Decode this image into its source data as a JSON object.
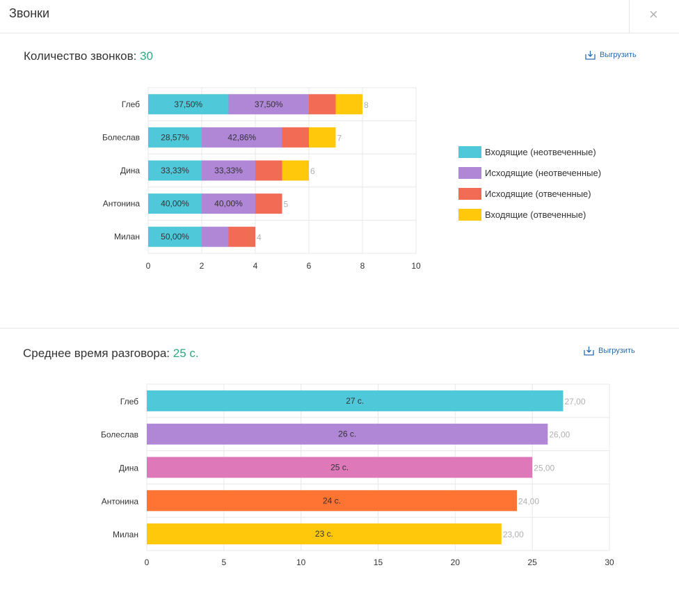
{
  "window": {
    "title": "Звонки"
  },
  "close_icon": "×",
  "section1": {
    "title": "Количество звонков: ",
    "value": "30",
    "export_label": "Выгрузить"
  },
  "section2": {
    "title": "Среднее время разговора: ",
    "value": "25 с.",
    "export_label": "Выгрузить"
  },
  "chart_data": [
    {
      "type": "bar",
      "orientation": "horizontal",
      "stacked": true,
      "categories": [
        "Глеб",
        "Болеслав",
        "Дина",
        "Антонина",
        "Милан"
      ],
      "series": [
        {
          "name": "Входящие (неотвеченные)",
          "color": "#4fc8d9",
          "values": [
            3,
            2,
            2,
            2,
            2
          ],
          "labels": [
            "37,50%",
            "28,57%",
            "33,33%",
            "40,00%",
            "50,00%"
          ]
        },
        {
          "name": "Исходящие (неотвеченные)",
          "color": "#b086d6",
          "values": [
            3,
            3,
            2,
            2,
            1
          ],
          "labels": [
            "37,50%",
            "42,86%",
            "33,33%",
            "40,00%",
            ""
          ]
        },
        {
          "name": "Исходящие (отвеченные)",
          "color": "#f26b55",
          "values": [
            1,
            1,
            1,
            1,
            1
          ],
          "labels": [
            "",
            "",
            "",
            "",
            ""
          ]
        },
        {
          "name": "Входящие (отвеченные)",
          "color": "#ffc80a",
          "values": [
            1,
            1,
            1,
            0,
            0
          ],
          "labels": [
            "",
            "",
            "",
            "",
            ""
          ]
        }
      ],
      "totals": [
        "8",
        "7",
        "6",
        "5",
        "4"
      ],
      "xlim": [
        0,
        10
      ],
      "xticks": [
        "0",
        "2",
        "4",
        "6",
        "8",
        "10"
      ],
      "grid": true,
      "legend": "right"
    },
    {
      "type": "bar",
      "orientation": "horizontal",
      "categories": [
        "Глеб",
        "Болеслав",
        "Дина",
        "Антонина",
        "Милан"
      ],
      "values": [
        27,
        26,
        25,
        24,
        23
      ],
      "bar_labels": [
        "27 с.",
        "26 с.",
        "25 с.",
        "24 с.",
        "23 с."
      ],
      "end_labels": [
        "27,00",
        "26,00",
        "25,00",
        "24,00",
        "23,00"
      ],
      "colors": [
        "#4fc8d9",
        "#b086d6",
        "#df78b8",
        "#ff7333",
        "#ffc80a"
      ],
      "xlim": [
        0,
        30
      ],
      "xticks": [
        "0",
        "5",
        "10",
        "15",
        "20",
        "25",
        "30"
      ],
      "grid": true
    }
  ]
}
